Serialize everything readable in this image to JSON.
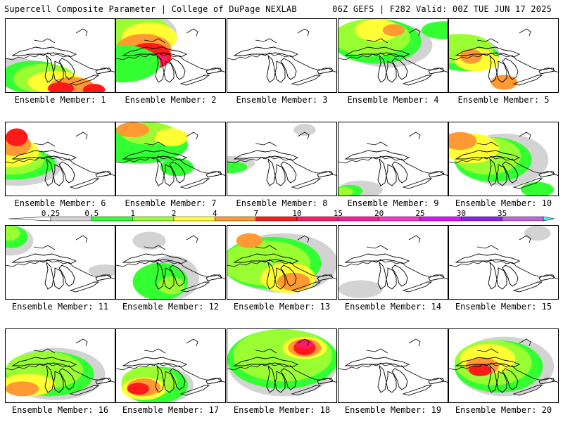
{
  "header": {
    "title_left": "Supercell Composite Parameter | College of DuPage NEXLAB",
    "title_right": "06Z GEFS | F282 Valid: 00Z TUE JUN 17 2025"
  },
  "colors": {
    "levels": [
      {
        "label": "0.25",
        "color": "#d3d3d3"
      },
      {
        "label": "0.5",
        "color": "#33ff33"
      },
      {
        "label": "1",
        "color": "#99ff33"
      },
      {
        "label": "2",
        "color": "#ffff33"
      },
      {
        "label": "4",
        "color": "#ff9933"
      },
      {
        "label": "7",
        "color": "#ff1a1a"
      },
      {
        "label": "10",
        "color": "#ff1a66"
      },
      {
        "label": "15",
        "color": "#ff1a99"
      },
      {
        "label": "20",
        "color": "#ff33cc"
      },
      {
        "label": "25",
        "color": "#dd11ff"
      },
      {
        "label": "30",
        "color": "#8822ee"
      },
      {
        "label": "35",
        "color": "#bb66dd"
      }
    ],
    "top_color": "#33ffff"
  },
  "panels": [
    {
      "label": "Ensemble Member: 1",
      "blobs": [
        [
          0,
          0.72,
          0.05,
          0.35,
          0.2
        ],
        [
          1,
          0.78,
          0.25,
          0.3,
          0.22
        ],
        [
          2,
          0.8,
          0.35,
          0.28,
          0.2
        ],
        [
          3,
          0.85,
          0.45,
          0.25,
          0.15
        ],
        [
          4,
          0.9,
          0.6,
          0.2,
          0.12
        ],
        [
          5,
          0.93,
          0.5,
          0.12,
          0.08
        ],
        [
          5,
          0.95,
          0.8,
          0.1,
          0.08
        ]
      ]
    },
    {
      "label": "Ensemble Member: 2",
      "blobs": [
        [
          0,
          0.2,
          0.2,
          0.35,
          0.3
        ],
        [
          2,
          0.2,
          0.15,
          0.35,
          0.28
        ],
        [
          3,
          0.25,
          0.3,
          0.25,
          0.2
        ],
        [
          4,
          0.4,
          0.25,
          0.25,
          0.2
        ],
        [
          5,
          0.5,
          0.3,
          0.2,
          0.18
        ],
        [
          6,
          0.55,
          0.35,
          0.12,
          0.1
        ],
        [
          1,
          0.6,
          0.05,
          0.35,
          0.25
        ]
      ]
    },
    {
      "label": "Ensemble Member: 3",
      "blobs": []
    },
    {
      "label": "Ensemble Member: 4",
      "blobs": [
        [
          0,
          0.35,
          0.45,
          0.4,
          0.3
        ],
        [
          1,
          0.3,
          0.35,
          0.4,
          0.3
        ],
        [
          2,
          0.25,
          0.3,
          0.35,
          0.25
        ],
        [
          3,
          0.15,
          0.35,
          0.2,
          0.15
        ],
        [
          4,
          0.15,
          0.5,
          0.1,
          0.08
        ],
        [
          1,
          0.15,
          0.95,
          0.2,
          0.12
        ]
      ]
    },
    {
      "label": "Ensemble Member: 5",
      "blobs": [
        [
          0,
          0.45,
          0.2,
          0.25,
          0.2
        ],
        [
          1,
          0.5,
          0.15,
          0.3,
          0.2
        ],
        [
          2,
          0.4,
          0.1,
          0.3,
          0.2
        ],
        [
          3,
          0.55,
          0.25,
          0.2,
          0.15
        ],
        [
          4,
          0.5,
          0.2,
          0.1,
          0.1
        ],
        [
          4,
          0.85,
          0.5,
          0.12,
          0.1
        ]
      ]
    },
    {
      "label": "Ensemble Member: 6",
      "blobs": [
        [
          0,
          0.6,
          0.1,
          0.4,
          0.25
        ],
        [
          1,
          0.55,
          0.05,
          0.4,
          0.22
        ],
        [
          2,
          0.5,
          0.05,
          0.3,
          0.2
        ],
        [
          3,
          0.4,
          0.05,
          0.25,
          0.2
        ],
        [
          4,
          0.3,
          0.08,
          0.15,
          0.15
        ],
        [
          5,
          0.2,
          0.1,
          0.1,
          0.12
        ]
      ]
    },
    {
      "label": "Ensemble Member: 7",
      "blobs": [
        [
          0,
          0.3,
          0.3,
          0.3,
          0.25
        ],
        [
          1,
          0.3,
          0.2,
          0.45,
          0.25
        ],
        [
          2,
          0.15,
          0.3,
          0.25,
          0.15
        ],
        [
          4,
          0.1,
          0.15,
          0.15,
          0.1
        ],
        [
          3,
          0.2,
          0.5,
          0.15,
          0.12
        ],
        [
          1,
          0.6,
          0.55,
          0.15,
          0.12
        ]
      ]
    },
    {
      "label": "Ensemble Member: 8",
      "blobs": [
        [
          0,
          0.55,
          0.05,
          0.2,
          0.1
        ],
        [
          1,
          0.6,
          0.03,
          0.15,
          0.08
        ],
        [
          0,
          0.1,
          0.7,
          0.1,
          0.08
        ]
      ]
    },
    {
      "label": "Ensemble Member: 9",
      "blobs": [
        [
          0,
          0.9,
          0.2,
          0.2,
          0.12
        ],
        [
          1,
          0.92,
          0.1,
          0.12,
          0.08
        ],
        [
          2,
          0.93,
          0.05,
          0.08,
          0.06
        ]
      ]
    },
    {
      "label": "Ensemble Member: 10",
      "blobs": [
        [
          0,
          0.5,
          0.5,
          0.4,
          0.35
        ],
        [
          1,
          0.5,
          0.4,
          0.35,
          0.3
        ],
        [
          2,
          0.45,
          0.35,
          0.3,
          0.25
        ],
        [
          3,
          0.35,
          0.2,
          0.25,
          0.2
        ],
        [
          4,
          0.25,
          0.1,
          0.15,
          0.12
        ],
        [
          1,
          0.9,
          0.8,
          0.15,
          0.1
        ]
      ]
    },
    {
      "label": "Ensemble Member: 11",
      "blobs": [
        [
          0,
          0.2,
          0.05,
          0.2,
          0.2
        ],
        [
          1,
          0.15,
          0.05,
          0.15,
          0.15
        ],
        [
          2,
          0.1,
          0.03,
          0.1,
          0.1
        ],
        [
          0,
          0.6,
          0.9,
          0.15,
          0.08
        ]
      ]
    },
    {
      "label": "Ensemble Member: 12",
      "blobs": [
        [
          0,
          0.7,
          0.5,
          0.25,
          0.3
        ],
        [
          1,
          0.75,
          0.4,
          0.25,
          0.25
        ],
        [
          2,
          0.8,
          0.5,
          0.12,
          0.12
        ],
        [
          0,
          0.2,
          0.3,
          0.15,
          0.12
        ]
      ]
    },
    {
      "label": "Ensemble Member: 13",
      "blobs": [
        [
          0,
          0.5,
          0.5,
          0.5,
          0.4
        ],
        [
          1,
          0.5,
          0.4,
          0.45,
          0.35
        ],
        [
          2,
          0.5,
          0.35,
          0.4,
          0.3
        ],
        [
          3,
          0.7,
          0.55,
          0.25,
          0.2
        ],
        [
          4,
          0.75,
          0.6,
          0.15,
          0.12
        ],
        [
          4,
          0.2,
          0.2,
          0.12,
          0.1
        ]
      ]
    },
    {
      "label": "Ensemble Member: 14",
      "blobs": [
        [
          0,
          0.85,
          0.2,
          0.2,
          0.12
        ]
      ]
    },
    {
      "label": "Ensemble Member: 15",
      "blobs": [
        [
          0,
          0.1,
          0.8,
          0.12,
          0.1
        ]
      ]
    },
    {
      "label": "Ensemble Member: 16",
      "blobs": [
        [
          0,
          0.6,
          0.45,
          0.45,
          0.35
        ],
        [
          1,
          0.6,
          0.4,
          0.4,
          0.3
        ],
        [
          2,
          0.55,
          0.35,
          0.35,
          0.25
        ],
        [
          3,
          0.75,
          0.2,
          0.25,
          0.15
        ],
        [
          4,
          0.8,
          0.15,
          0.15,
          0.1
        ]
      ]
    },
    {
      "label": "Ensemble Member: 17",
      "blobs": [
        [
          0,
          0.75,
          0.4,
          0.3,
          0.25
        ],
        [
          1,
          0.75,
          0.35,
          0.3,
          0.25
        ],
        [
          2,
          0.7,
          0.3,
          0.25,
          0.2
        ],
        [
          3,
          0.8,
          0.25,
          0.2,
          0.15
        ],
        [
          4,
          0.78,
          0.25,
          0.15,
          0.12
        ],
        [
          5,
          0.8,
          0.2,
          0.1,
          0.08
        ]
      ]
    },
    {
      "label": "Ensemble Member: 18",
      "blobs": [
        [
          0,
          0.45,
          0.5,
          0.5,
          0.45
        ],
        [
          1,
          0.4,
          0.5,
          0.5,
          0.4
        ],
        [
          2,
          0.35,
          0.5,
          0.45,
          0.35
        ],
        [
          3,
          0.25,
          0.7,
          0.2,
          0.15
        ],
        [
          4,
          0.25,
          0.7,
          0.15,
          0.12
        ],
        [
          5,
          0.25,
          0.7,
          0.1,
          0.1
        ],
        [
          6,
          0.2,
          0.7,
          0.08,
          0.06
        ]
      ]
    },
    {
      "label": "Ensemble Member: 19",
      "blobs": []
    },
    {
      "label": "Ensemble Member: 20",
      "blobs": [
        [
          0,
          0.5,
          0.5,
          0.45,
          0.4
        ],
        [
          1,
          0.5,
          0.45,
          0.4,
          0.35
        ],
        [
          2,
          0.45,
          0.4,
          0.35,
          0.3
        ],
        [
          3,
          0.4,
          0.35,
          0.25,
          0.2
        ],
        [
          4,
          0.5,
          0.3,
          0.15,
          0.12
        ],
        [
          5,
          0.55,
          0.28,
          0.1,
          0.08
        ]
      ]
    }
  ]
}
